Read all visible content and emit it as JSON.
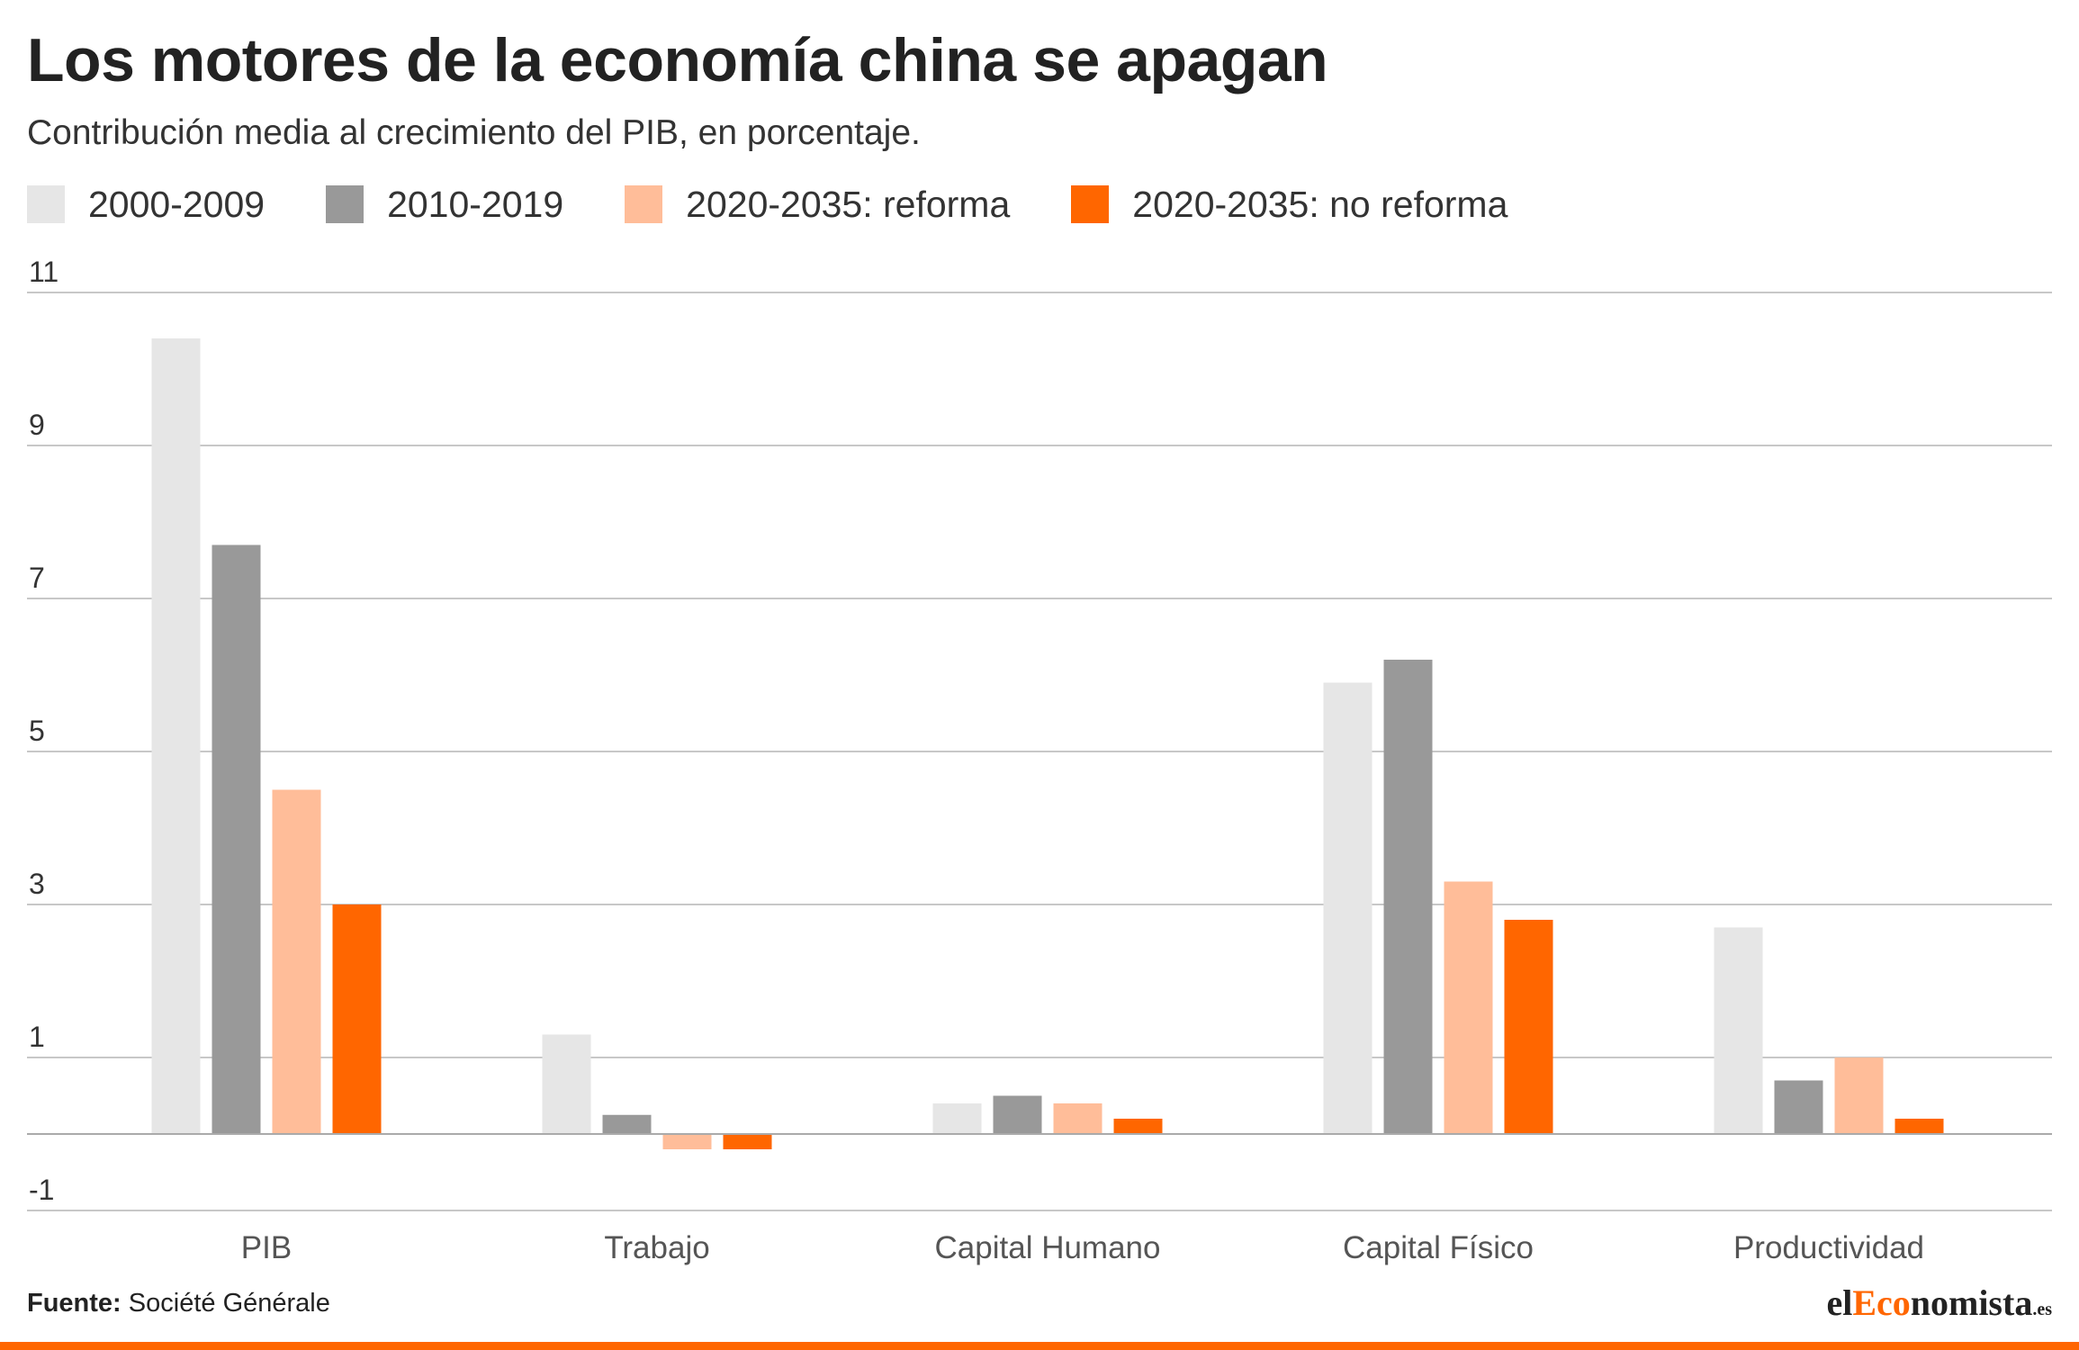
{
  "title": "Los motores de la economía china se apagan",
  "subtitle": "Contribución media al crecimiento del PIB, en porcentaje.",
  "source_label": "Fuente:",
  "source_value": "Société Générale",
  "brand": {
    "prefix": "el",
    "highlight": "Eco",
    "suffix": "nomista",
    "tld": ".es"
  },
  "colors": {
    "s0": "#e6e6e6",
    "s1": "#999999",
    "s2": "#ffbd99",
    "s3": "#ff6600",
    "grid": "#c8c8c8",
    "accent": "#ff6600"
  },
  "chart_data": {
    "type": "bar",
    "title": "Los motores de la economía china se apagan",
    "subtitle": "Contribución media al crecimiento del PIB, en porcentaje.",
    "categories": [
      "PIB",
      "Trabajo",
      "Capital Humano",
      "Capital Físico",
      "Productividad"
    ],
    "series": [
      {
        "name": "2000-2009",
        "color": "#e6e6e6",
        "values": [
          10.4,
          1.3,
          0.4,
          5.9,
          2.7
        ]
      },
      {
        "name": "2010-2019",
        "color": "#999999",
        "values": [
          7.7,
          0.25,
          0.5,
          6.2,
          0.7
        ]
      },
      {
        "name": "2020-2035: reforma",
        "color": "#ffbd99",
        "values": [
          4.5,
          -0.2,
          0.4,
          3.3,
          1.0
        ]
      },
      {
        "name": "2020-2035: no reforma",
        "color": "#ff6600",
        "values": [
          3.0,
          -0.2,
          0.2,
          2.8,
          0.2
        ]
      }
    ],
    "y_ticks": [
      11,
      9,
      7,
      5,
      3,
      1,
      -1
    ],
    "ylim": [
      -1,
      11
    ],
    "xlabel": "",
    "ylabel": "",
    "grid": true,
    "legend_position": "top-left"
  }
}
